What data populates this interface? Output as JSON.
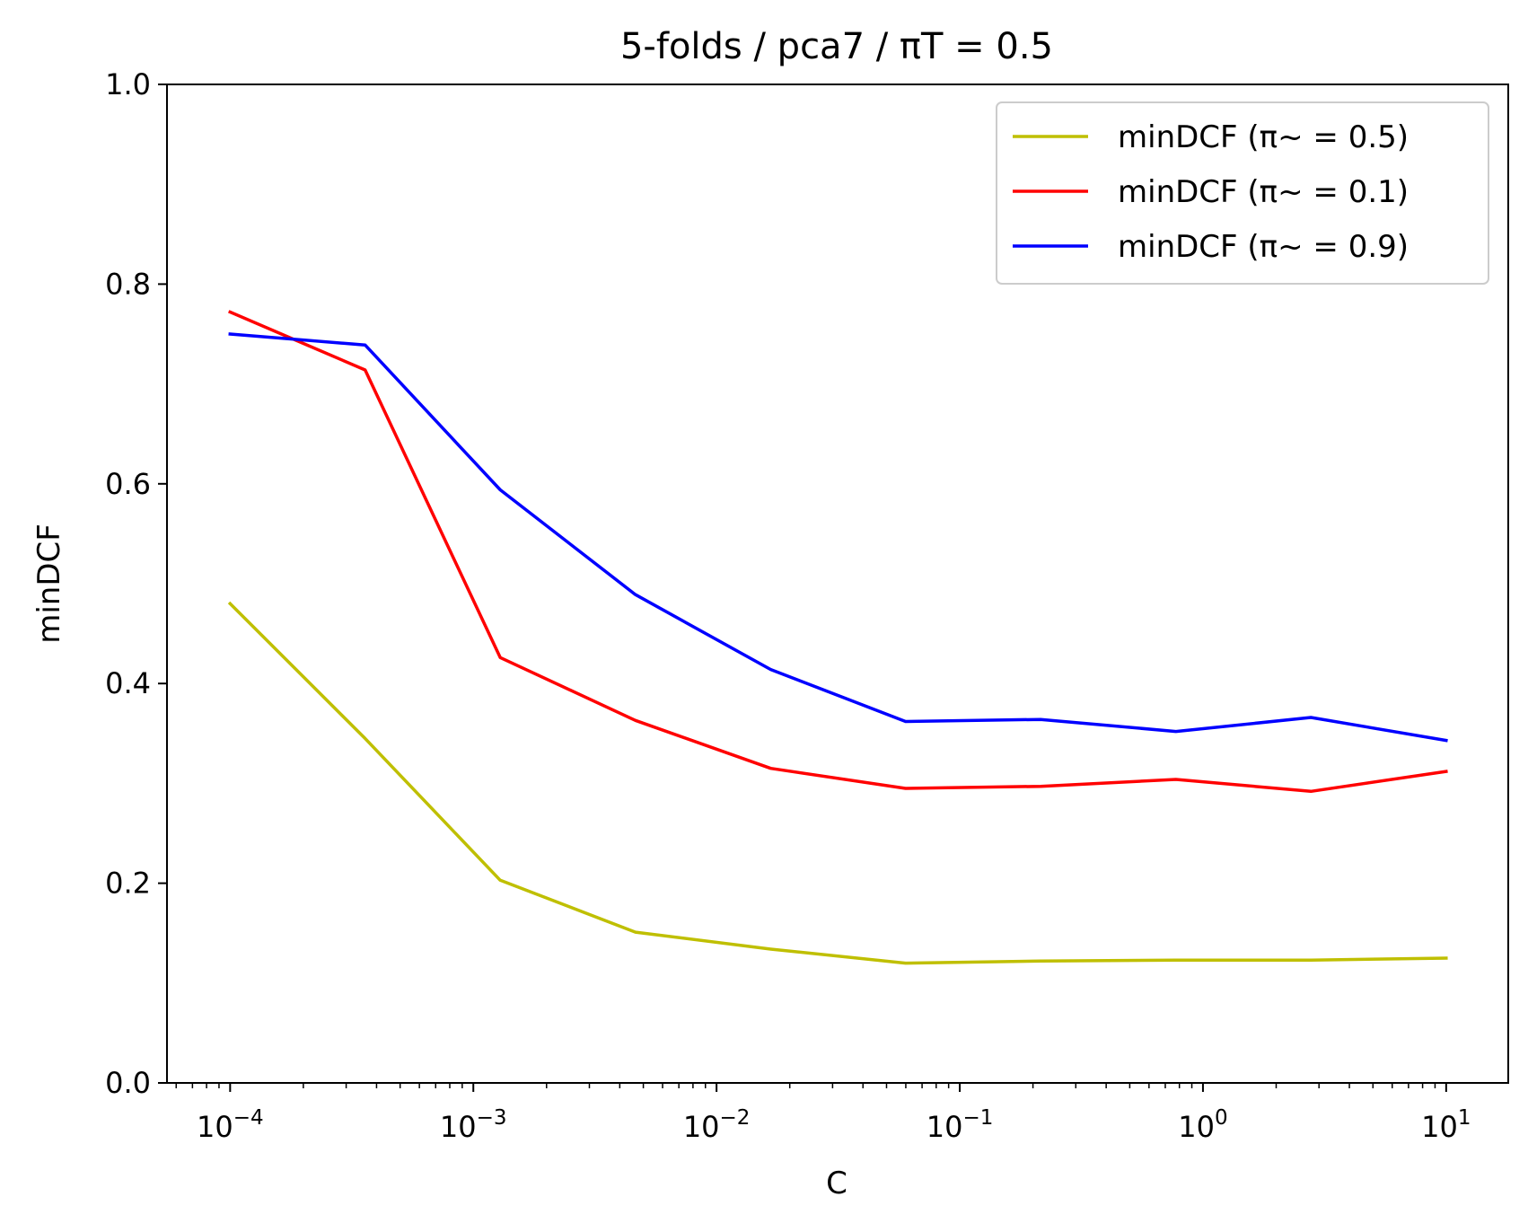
{
  "chart_data": {
    "type": "line",
    "title": "5-folds / pca7 / πT = 0.5",
    "xlabel": "C",
    "ylabel": "minDCF",
    "x_scale": "log",
    "xlim": [
      5.5e-05,
      18
    ],
    "ylim": [
      0,
      1
    ],
    "grid": false,
    "legend_position": "top-right",
    "x": [
      0.0001,
      0.000359,
      0.00129,
      0.00464,
      0.0167,
      0.0599,
      0.215,
      0.774,
      2.78,
      10
    ],
    "x_ticks": [
      0.0001,
      0.001,
      0.01,
      0.1,
      1,
      10
    ],
    "x_tick_labels": [
      {
        "base": "10",
        "exp": "−4"
      },
      {
        "base": "10",
        "exp": "−3"
      },
      {
        "base": "10",
        "exp": "−2"
      },
      {
        "base": "10",
        "exp": "−1"
      },
      {
        "base": "10",
        "exp": "0"
      },
      {
        "base": "10",
        "exp": "1"
      }
    ],
    "y_ticks": [
      0.0,
      0.2,
      0.4,
      0.6,
      0.8,
      1.0
    ],
    "y_tick_labels": [
      "0.0",
      "0.2",
      "0.4",
      "0.6",
      "0.8",
      "1.0"
    ],
    "series": [
      {
        "name": "minDCF (π~ = 0.5)",
        "color": "#bfbf00",
        "values": [
          0.48,
          0.345,
          0.203,
          0.151,
          0.134,
          0.12,
          0.122,
          0.123,
          0.123,
          0.125
        ]
      },
      {
        "name": "minDCF (π~ = 0.1)",
        "color": "#ff0000",
        "values": [
          0.772,
          0.714,
          0.426,
          0.363,
          0.315,
          0.295,
          0.297,
          0.304,
          0.292,
          0.312
        ]
      },
      {
        "name": "minDCF (π~ = 0.9)",
        "color": "#0000ff",
        "values": [
          0.75,
          0.739,
          0.594,
          0.489,
          0.414,
          0.362,
          0.364,
          0.352,
          0.366,
          0.343
        ]
      }
    ]
  }
}
